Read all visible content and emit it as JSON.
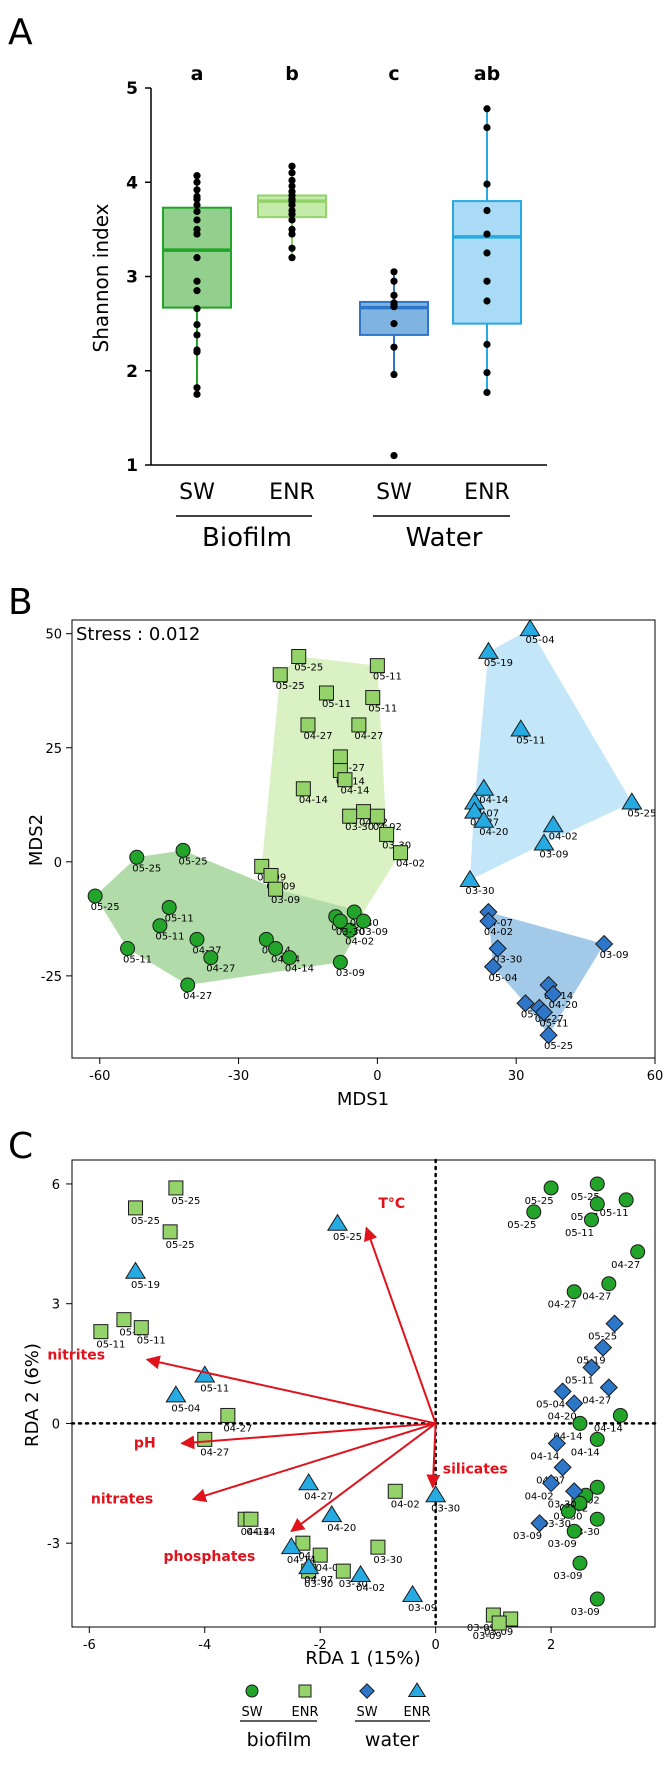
{
  "panel_labels": {
    "a": "A",
    "b": "B",
    "c": "C"
  },
  "colors": {
    "sw_biofilm": "#22a32a",
    "enr_biofilm": "#93d36a",
    "sw_water": "#2d76c8",
    "enr_water": "#27a9e1",
    "env_arrow": "#e0121b"
  },
  "chart_data": [
    {
      "type": "box",
      "ylabel": "Shannon index",
      "ylim": [
        1,
        5
      ],
      "yticks": [
        "1",
        "2",
        "3",
        "4",
        "5"
      ],
      "groups": [
        {
          "label": "SW",
          "letter": "a",
          "stats": {
            "q1": 2.67,
            "median": 3.28,
            "q3": 3.73,
            "whisker_low": 1.75,
            "whisker_high": 4.07
          },
          "points": [
            4.07,
            4.0,
            3.92,
            3.85,
            3.82,
            3.76,
            3.69,
            3.6,
            3.5,
            3.45,
            3.2,
            2.95,
            2.85,
            2.66,
            2.49,
            2.38,
            2.22,
            2.2,
            1.82,
            1.75
          ]
        },
        {
          "label": "ENR",
          "letter": "b",
          "stats": {
            "q1": 3.63,
            "median": 3.8,
            "q3": 3.86,
            "whisker_low": 3.2,
            "whisker_high": 4.17
          },
          "points": [
            4.17,
            4.1,
            4.02,
            3.96,
            3.9,
            3.86,
            3.82,
            3.8,
            3.76,
            3.7,
            3.66,
            3.6,
            3.5,
            3.45,
            3.3,
            3.2
          ]
        },
        {
          "label": "SW",
          "letter": "c",
          "stats": {
            "q1": 2.38,
            "median": 2.67,
            "q3": 2.73,
            "whisker_low": 1.96,
            "whisker_high": 3.05
          },
          "points": [
            3.05,
            2.95,
            2.8,
            2.72,
            2.7,
            2.68,
            2.5,
            2.25,
            1.96,
            1.1
          ]
        },
        {
          "label": "ENR",
          "letter": "ab",
          "stats": {
            "q1": 2.5,
            "median": 3.42,
            "q3": 3.8,
            "whisker_low": 1.77,
            "whisker_high": 4.78
          },
          "points": [
            4.78,
            4.58,
            3.98,
            3.7,
            3.45,
            3.25,
            2.95,
            2.74,
            2.28,
            1.98,
            1.77
          ]
        }
      ],
      "group_labels": [
        "Biofilm",
        "Water"
      ]
    },
    {
      "type": "scatter",
      "annotation": "Stress : 0.012",
      "xlabel": "MDS1",
      "ylabel": "MDS2",
      "xlim": [
        -66,
        60
      ],
      "ylim": [
        -43,
        53
      ],
      "xticks": [
        -60,
        -30,
        0,
        30,
        60
      ],
      "yticks": [
        -25,
        0,
        25,
        50
      ],
      "series": [
        {
          "group": "sw_biofilm",
          "marker": "circle",
          "points": [
            [
              -42,
              2.5,
              "05-25"
            ],
            [
              -52,
              1,
              "05-25"
            ],
            [
              -61,
              -7.5,
              "05-25"
            ],
            [
              -45,
              -10,
              "05-11"
            ],
            [
              -47,
              -14,
              "05-11"
            ],
            [
              -54,
              -19,
              "05-11"
            ],
            [
              -39,
              -17,
              "04-27"
            ],
            [
              -36,
              -21,
              "04-27"
            ],
            [
              -41,
              -27,
              "04-27"
            ],
            [
              -24,
              -17,
              "04-14"
            ],
            [
              -22,
              -19,
              "04-14"
            ],
            [
              -19,
              -21,
              "04-14"
            ],
            [
              -9,
              -12,
              "04-02"
            ],
            [
              -6,
              -15,
              "04-02"
            ],
            [
              -8,
              -13,
              "03-30"
            ],
            [
              -5,
              -11,
              "03-30"
            ],
            [
              -3,
              -13,
              "03-09"
            ],
            [
              -8,
              -22,
              "03-09"
            ]
          ]
        },
        {
          "group": "enr_biofilm",
          "marker": "square",
          "points": [
            [
              -21,
              41,
              "05-25"
            ],
            [
              -17,
              45,
              "05-25"
            ],
            [
              0,
              43,
              "05-11"
            ],
            [
              -11,
              37,
              "05-11"
            ],
            [
              -1,
              36,
              "05-11"
            ],
            [
              -4,
              30,
              "04-27"
            ],
            [
              -15,
              30,
              "04-27"
            ],
            [
              -8,
              23,
              "04-27"
            ],
            [
              -8,
              20,
              "04-14"
            ],
            [
              -7,
              18,
              "04-14"
            ],
            [
              -16,
              16,
              "04-14"
            ],
            [
              -3,
              11,
              "04-02"
            ],
            [
              -6,
              10,
              "03-30"
            ],
            [
              0,
              10,
              "04-02"
            ],
            [
              2,
              6,
              "03-30"
            ],
            [
              5,
              2,
              "04-02"
            ],
            [
              -25,
              -1,
              "03-09"
            ],
            [
              -23,
              -3,
              "03-09"
            ],
            [
              -22,
              -6,
              "03-09"
            ]
          ]
        },
        {
          "group": "sw_water",
          "marker": "diamond",
          "points": [
            [
              24,
              -11,
              "04-07"
            ],
            [
              24,
              -13,
              "04-02"
            ],
            [
              26,
              -19,
              "03-30"
            ],
            [
              25,
              -23,
              "05-04"
            ],
            [
              32,
              -31,
              "05-19"
            ],
            [
              35,
              -32,
              "04-27"
            ],
            [
              37,
              -27,
              "04-14"
            ],
            [
              38,
              -29,
              "04-20"
            ],
            [
              36,
              -33,
              "05-11"
            ],
            [
              37,
              -38,
              "05-25"
            ],
            [
              49,
              -18,
              "03-09"
            ]
          ]
        },
        {
          "group": "enr_water",
          "marker": "triangle",
          "points": [
            [
              33,
              51,
              "05-04"
            ],
            [
              24,
              46,
              "05-19"
            ],
            [
              31,
              29,
              "05-11"
            ],
            [
              23,
              16,
              "04-14"
            ],
            [
              21,
              13,
              "04-07"
            ],
            [
              21,
              11,
              "04-27"
            ],
            [
              23,
              9,
              "04-20"
            ],
            [
              38,
              8,
              "04-02"
            ],
            [
              36,
              4,
              "03-09"
            ],
            [
              20,
              -4,
              "03-30"
            ],
            [
              55,
              13,
              "05-25"
            ]
          ]
        }
      ],
      "hulls": {
        "sw_biofilm": [
          [
            -61,
            -7.5
          ],
          [
            -52,
            1
          ],
          [
            -42,
            2.5
          ],
          [
            -24,
            -5
          ],
          [
            -3,
            -11
          ],
          [
            -3,
            -13
          ],
          [
            -8,
            -22
          ],
          [
            -41,
            -27
          ],
          [
            -54,
            -19
          ]
        ],
        "enr_biofilm": [
          [
            -17,
            45
          ],
          [
            0,
            43
          ],
          [
            2,
            6
          ],
          [
            5,
            2
          ],
          [
            -3,
            -11
          ],
          [
            -22,
            -6
          ],
          [
            -25,
            -1
          ],
          [
            -21,
            41
          ]
        ],
        "sw_water": [
          [
            24,
            -11
          ],
          [
            49,
            -18
          ],
          [
            37,
            -38
          ],
          [
            32,
            -31
          ],
          [
            25,
            -23
          ]
        ],
        "enr_water": [
          [
            33,
            51
          ],
          [
            55,
            13
          ],
          [
            36,
            4
          ],
          [
            20,
            -4
          ],
          [
            21,
            13
          ],
          [
            24,
            46
          ]
        ]
      }
    },
    {
      "type": "scatter",
      "xlabel": "RDA 1 (15%)",
      "ylabel": "RDA 2 (6%)",
      "xlim": [
        -6.3,
        3.8
      ],
      "ylim": [
        -5.1,
        6.6
      ],
      "xticks": [
        -6,
        -4,
        -2,
        0,
        2
      ],
      "yticks": [
        -3,
        0,
        3,
        6
      ],
      "series": [
        {
          "group": "sw_biofilm",
          "marker": "circle",
          "points": [
            [
              2.8,
              6.0,
              "05-25"
            ],
            [
              3.3,
              5.6,
              "05-11"
            ],
            [
              2.0,
              5.9,
              "05-25"
            ],
            [
              2.8,
              5.5,
              "05-11"
            ],
            [
              1.7,
              5.3,
              "05-25"
            ],
            [
              2.7,
              5.1,
              "05-11"
            ],
            [
              3.5,
              4.3,
              "04-27"
            ],
            [
              3.0,
              3.5,
              "04-27"
            ],
            [
              2.4,
              3.3,
              "04-27"
            ],
            [
              3.2,
              0.2,
              "04-14"
            ],
            [
              2.5,
              0.0,
              "04-14"
            ],
            [
              2.8,
              -0.4,
              "04-14"
            ],
            [
              2.8,
              -1.6,
              "04-02"
            ],
            [
              2.6,
              -1.8,
              "04-02"
            ],
            [
              2.5,
              -2.0,
              "03-30"
            ],
            [
              2.3,
              -2.2,
              "03-30"
            ],
            [
              2.8,
              -2.4,
              "03-30"
            ],
            [
              2.4,
              -2.7,
              "03-09"
            ],
            [
              2.5,
              -3.5,
              "03-09"
            ],
            [
              2.8,
              -4.4,
              "03-09"
            ]
          ]
        },
        {
          "group": "enr_biofilm",
          "marker": "square",
          "points": [
            [
              -4.5,
              5.9,
              "05-25"
            ],
            [
              -5.2,
              5.4,
              "05-25"
            ],
            [
              -4.6,
              4.8,
              "05-25"
            ],
            [
              -5.8,
              2.3,
              "05-11"
            ],
            [
              -5.4,
              2.6,
              "05-11"
            ],
            [
              -5.1,
              2.4,
              "05-11"
            ],
            [
              -3.6,
              0.2,
              "04-27"
            ],
            [
              -4.0,
              -0.4,
              "04-27"
            ],
            [
              -3.3,
              -2.4,
              "04-14"
            ],
            [
              -3.2,
              -2.4,
              "04-14"
            ],
            [
              -2.3,
              -3.0,
              "04-02"
            ],
            [
              -2.0,
              -3.3,
              "04-02"
            ],
            [
              -1.6,
              -3.7,
              "03-30"
            ],
            [
              -2.2,
              -3.7,
              "03-30"
            ],
            [
              -1.0,
              -3.1,
              "03-30"
            ],
            [
              -0.7,
              -1.7,
              "04-02"
            ],
            [
              1.0,
              -4.8,
              "03-09"
            ],
            [
              1.3,
              -4.9,
              "03-09"
            ],
            [
              1.1,
              -5.0,
              "03-09"
            ]
          ]
        },
        {
          "group": "sw_water",
          "marker": "diamond",
          "points": [
            [
              3.1,
              2.5,
              "05-25"
            ],
            [
              2.9,
              1.9,
              "05-19"
            ],
            [
              2.7,
              1.4,
              "05-11"
            ],
            [
              3.0,
              0.9,
              "04-27"
            ],
            [
              2.2,
              0.8,
              "05-04"
            ],
            [
              2.4,
              0.5,
              "04-20"
            ],
            [
              2.1,
              -0.5,
              "04-14"
            ],
            [
              2.2,
              -1.1,
              "04-07"
            ],
            [
              2.0,
              -1.5,
              "04-02"
            ],
            [
              2.4,
              -1.7,
              "03-30"
            ],
            [
              1.8,
              -2.5,
              "03-09"
            ]
          ]
        },
        {
          "group": "enr_water",
          "marker": "triangle",
          "points": [
            [
              -1.7,
              5.0,
              "05-25"
            ],
            [
              -5.2,
              3.8,
              "05-19"
            ],
            [
              -4.0,
              1.2,
              "05-11"
            ],
            [
              -4.5,
              0.7,
              "05-04"
            ],
            [
              -2.2,
              -1.5,
              "04-27"
            ],
            [
              -1.8,
              -2.3,
              "04-20"
            ],
            [
              -2.5,
              -3.1,
              "04-14"
            ],
            [
              -2.2,
              -3.6,
              "04-07"
            ],
            [
              -1.3,
              -3.8,
              "04-02"
            ],
            [
              0.0,
              -1.8,
              "03-30"
            ],
            [
              -0.4,
              -4.3,
              "03-09"
            ]
          ]
        }
      ],
      "vectors": [
        {
          "label": "T°C",
          "x": -1.2,
          "y": 4.9
        },
        {
          "label": "nitrites",
          "x": -5.0,
          "y": 1.6
        },
        {
          "label": "pH",
          "x": -4.4,
          "y": -0.5
        },
        {
          "label": "nitrates",
          "x": -4.2,
          "y": -1.9
        },
        {
          "label": "phosphates",
          "x": -2.5,
          "y": -2.7
        },
        {
          "label": "silicates",
          "x": -0.05,
          "y": -1.6
        }
      ],
      "legend": {
        "items": [
          "SW",
          "ENR",
          "SW",
          "ENR"
        ],
        "groups": [
          "biofilm",
          "water"
        ]
      }
    }
  ]
}
